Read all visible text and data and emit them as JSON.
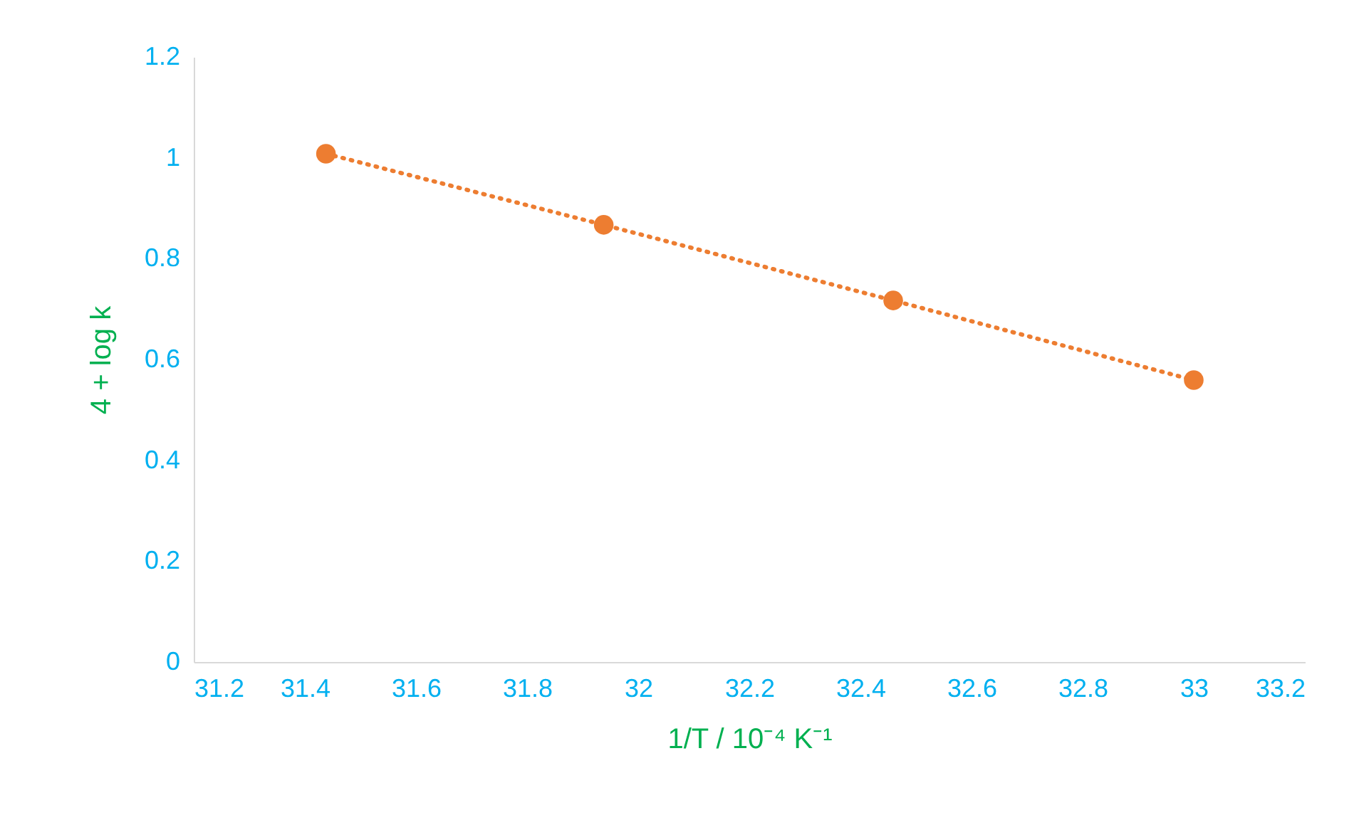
{
  "chart_data": {
    "type": "line",
    "xlabel": "1/T / 10⁻⁴ K⁻¹",
    "ylabel": "4 + log k",
    "x": [
      31.438,
      31.938,
      32.459,
      33.0
    ],
    "series": [
      {
        "color": "#ed7d31",
        "values": [
          1.008,
          0.867,
          0.717,
          0.559
        ]
      }
    ],
    "xlim": [
      31.2,
      33.2
    ],
    "xticks": [
      31.2,
      31.4,
      31.6,
      31.8,
      {
        "value": 32,
        "label": "32"
      },
      32.2,
      32.4,
      32.6,
      32.8,
      {
        "value": 33,
        "label": "33"
      },
      33.2
    ],
    "ylim": [
      0,
      1.2
    ],
    "yticks": [
      {
        "value": 0,
        "label": "0"
      },
      0.2,
      0.4,
      0.6,
      0.8,
      {
        "value": 1,
        "label": "1"
      },
      1.2
    ],
    "grid": false,
    "legend": false,
    "marker": "circle",
    "line_style": "dotted"
  }
}
